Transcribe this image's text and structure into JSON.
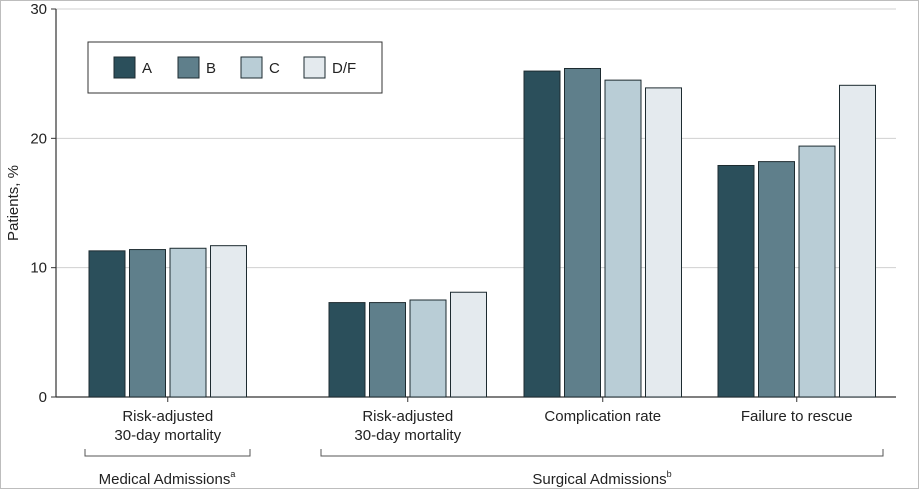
{
  "chart_data": {
    "type": "bar",
    "ylabel": "Patients, %",
    "ylim": [
      0,
      30
    ],
    "yticks": [
      0,
      10,
      20,
      30
    ],
    "grid": true,
    "legend_position": "top-left",
    "series": [
      {
        "name": "A",
        "color": "#2b4f5b",
        "values": [
          11.3,
          7.3,
          25.2,
          17.9
        ]
      },
      {
        "name": "B",
        "color": "#5f7f8b",
        "values": [
          11.4,
          7.3,
          25.4,
          18.2
        ]
      },
      {
        "name": "C",
        "color": "#b9cdd6",
        "values": [
          11.5,
          7.5,
          24.5,
          19.4
        ]
      },
      {
        "name": "D/F",
        "color": "#e4eaee",
        "values": [
          11.7,
          8.1,
          23.9,
          24.1
        ]
      }
    ],
    "categories": [
      {
        "label_lines": [
          "Risk-adjusted",
          "30-day mortality"
        ]
      },
      {
        "label_lines": [
          "Risk-adjusted",
          "30-day mortality"
        ]
      },
      {
        "label_lines": [
          "Complication rate"
        ]
      },
      {
        "label_lines": [
          "Failure to rescue"
        ]
      }
    ],
    "groups": [
      {
        "label": "Medical Admissions",
        "superscript": "a"
      },
      {
        "label": "Surgical Admissions",
        "superscript": "b"
      }
    ]
  }
}
